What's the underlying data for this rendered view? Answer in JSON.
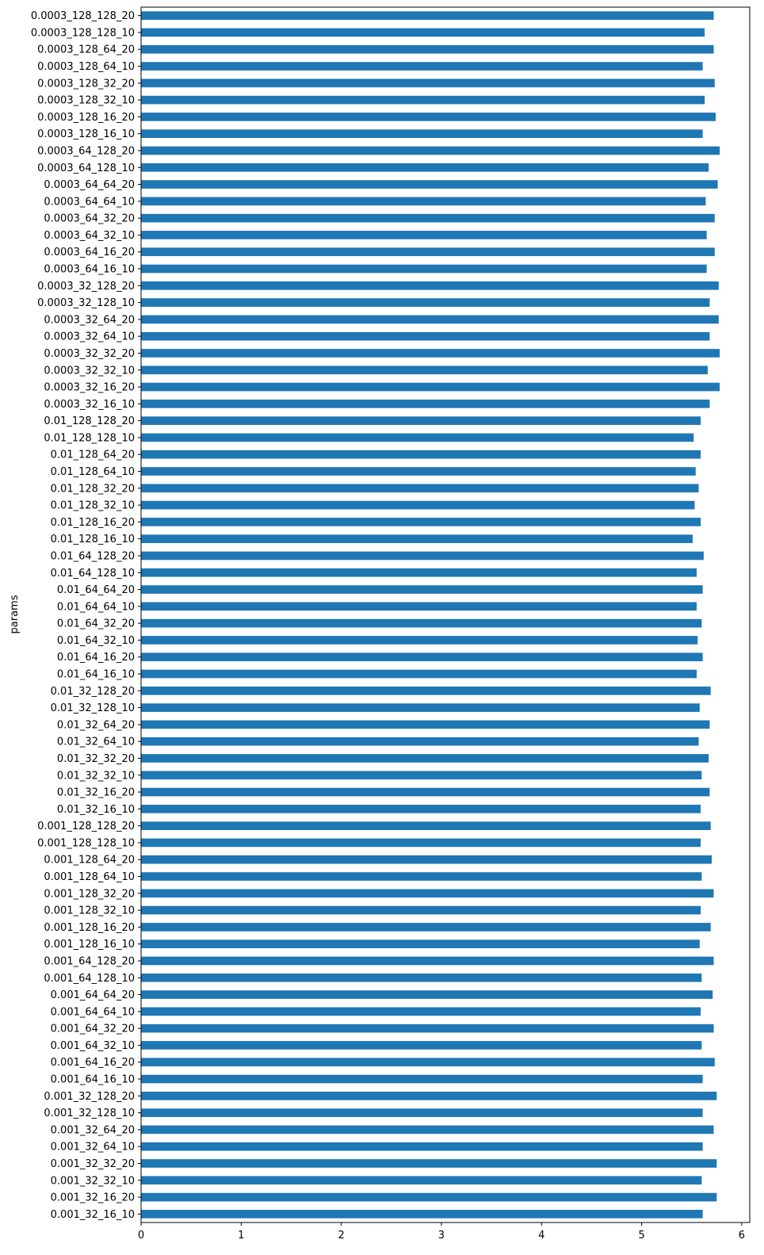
{
  "chart_data": {
    "type": "bar",
    "orientation": "horizontal",
    "title": "",
    "xlabel": "",
    "ylabel": "params",
    "xlim": [
      0,
      6.08
    ],
    "xticks": [
      0,
      1,
      2,
      3,
      4,
      5,
      6
    ],
    "grid": false,
    "legend": false,
    "bar_color": "#1f77b4",
    "categories": [
      "0.0003_128_128_20",
      "0.0003_128_128_10",
      "0.0003_128_64_20",
      "0.0003_128_64_10",
      "0.0003_128_32_20",
      "0.0003_128_32_10",
      "0.0003_128_16_20",
      "0.0003_128_16_10",
      "0.0003_64_128_20",
      "0.0003_64_128_10",
      "0.0003_64_64_20",
      "0.0003_64_64_10",
      "0.0003_64_32_20",
      "0.0003_64_32_10",
      "0.0003_64_16_20",
      "0.0003_64_16_10",
      "0.0003_32_128_20",
      "0.0003_32_128_10",
      "0.0003_32_64_20",
      "0.0003_32_64_10",
      "0.0003_32_32_20",
      "0.0003_32_32_10",
      "0.0003_32_16_20",
      "0.0003_32_16_10",
      "0.01_128_128_20",
      "0.01_128_128_10",
      "0.01_128_64_20",
      "0.01_128_64_10",
      "0.01_128_32_20",
      "0.01_128_32_10",
      "0.01_128_16_20",
      "0.01_128_16_10",
      "0.01_64_128_20",
      "0.01_64_128_10",
      "0.01_64_64_20",
      "0.01_64_64_10",
      "0.01_64_32_20",
      "0.01_64_32_10",
      "0.01_64_16_20",
      "0.01_64_16_10",
      "0.01_32_128_20",
      "0.01_32_128_10",
      "0.01_32_64_20",
      "0.01_32_64_10",
      "0.01_32_32_20",
      "0.01_32_32_10",
      "0.01_32_16_20",
      "0.01_32_16_10",
      "0.001_128_128_20",
      "0.001_128_128_10",
      "0.001_128_64_20",
      "0.001_128_64_10",
      "0.001_128_32_20",
      "0.001_128_32_10",
      "0.001_128_16_20",
      "0.001_128_16_10",
      "0.001_64_128_20",
      "0.001_64_128_10",
      "0.001_64_64_20",
      "0.001_64_64_10",
      "0.001_64_32_20",
      "0.001_64_32_10",
      "0.001_64_16_20",
      "0.001_64_16_10",
      "0.001_32_128_20",
      "0.001_32_128_10",
      "0.001_32_64_20",
      "0.001_32_64_10",
      "0.001_32_32_20",
      "0.001_32_32_10",
      "0.001_32_16_20",
      "0.001_32_16_10"
    ],
    "values": [
      5.72,
      5.63,
      5.72,
      5.61,
      5.73,
      5.63,
      5.74,
      5.61,
      5.78,
      5.67,
      5.76,
      5.64,
      5.73,
      5.65,
      5.73,
      5.65,
      5.77,
      5.68,
      5.77,
      5.68,
      5.78,
      5.66,
      5.78,
      5.68,
      5.59,
      5.52,
      5.59,
      5.54,
      5.57,
      5.53,
      5.59,
      5.51,
      5.62,
      5.55,
      5.61,
      5.55,
      5.6,
      5.56,
      5.61,
      5.55,
      5.69,
      5.58,
      5.68,
      5.57,
      5.67,
      5.6,
      5.68,
      5.59,
      5.69,
      5.59,
      5.7,
      5.6,
      5.72,
      5.59,
      5.69,
      5.58,
      5.72,
      5.6,
      5.71,
      5.59,
      5.72,
      5.6,
      5.73,
      5.61,
      5.75,
      5.61,
      5.72,
      5.61,
      5.75,
      5.6,
      5.75,
      5.61
    ]
  }
}
